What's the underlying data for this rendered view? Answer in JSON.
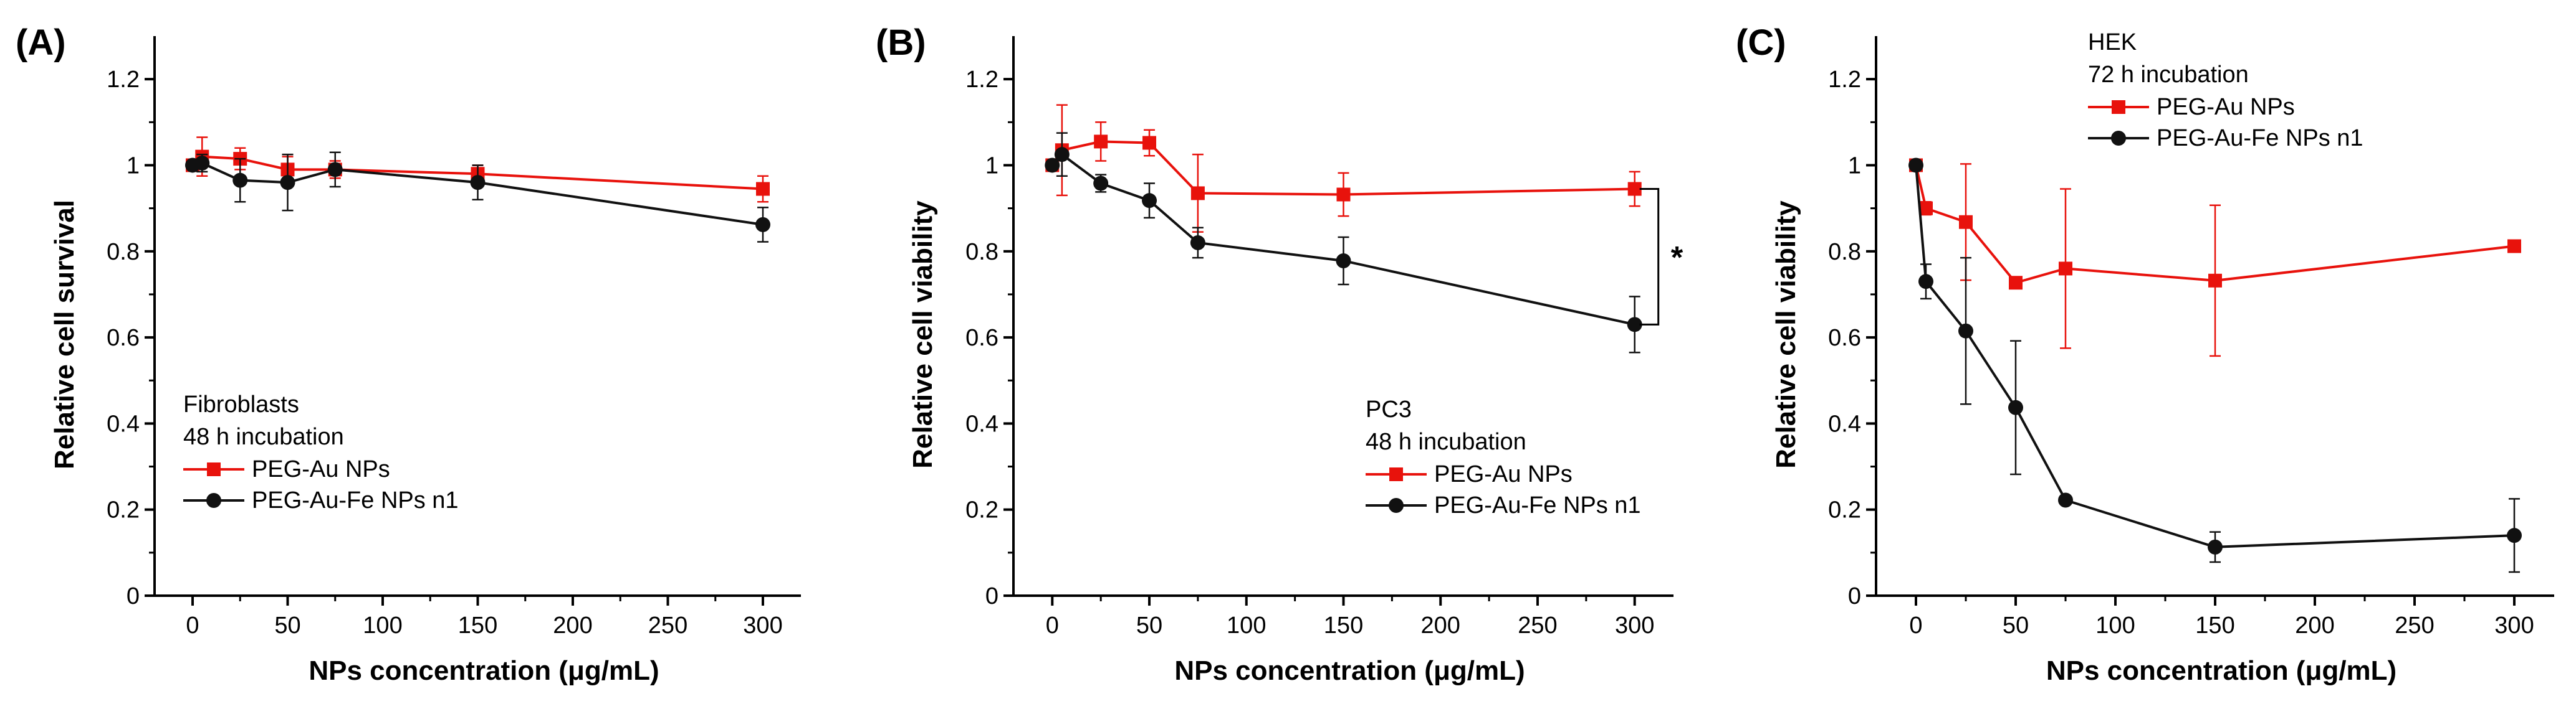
{
  "colors": {
    "red": "#e8120c",
    "black": "#111111",
    "axis": "#000000"
  },
  "chart_data": [
    {
      "panel_label": "(A)",
      "type": "line",
      "xlabel": "NPs concentration (μg/mL)",
      "ylabel": "Relative cell survival",
      "xlim": [
        -20,
        320
      ],
      "ylim": [
        0,
        1.3
      ],
      "xticks": [
        0,
        50,
        100,
        150,
        200,
        250,
        300
      ],
      "yticks": [
        0,
        0.2,
        0.4,
        0.6,
        0.8,
        1,
        1.2
      ],
      "ytick_labels": [
        "0",
        "0.2",
        "0.4",
        "0.6",
        "0.8",
        "1",
        "1.2"
      ],
      "legend_title": [
        "Fibroblasts",
        "48 h incubation"
      ],
      "legend_position": "bottom-left",
      "series": [
        {
          "name": "PEG-Au NPs",
          "color": "red",
          "marker": "square",
          "x": [
            0,
            5,
            25,
            50,
            75,
            150,
            300
          ],
          "y": [
            1.0,
            1.02,
            1.015,
            0.99,
            0.99,
            0.98,
            0.945
          ],
          "err": [
            0.0,
            0.045,
            0.025,
            0.03,
            0.02,
            0.02,
            0.03
          ]
        },
        {
          "name": "PEG-Au-Fe NPs n1",
          "color": "black",
          "marker": "circle",
          "x": [
            0,
            5,
            25,
            50,
            75,
            150,
            300
          ],
          "y": [
            1.0,
            1.005,
            0.965,
            0.96,
            0.99,
            0.96,
            0.862
          ],
          "err": [
            0.0,
            0.02,
            0.05,
            0.065,
            0.04,
            0.04,
            0.04
          ]
        }
      ]
    },
    {
      "panel_label": "(B)",
      "type": "line",
      "xlabel": "NPs concentration (μg/mL)",
      "ylabel": "Relative cell viability",
      "xlim": [
        -20,
        320
      ],
      "ylim": [
        0,
        1.3
      ],
      "xticks": [
        0,
        50,
        100,
        150,
        200,
        250,
        300
      ],
      "yticks": [
        0,
        0.2,
        0.4,
        0.6,
        0.8,
        1,
        1.2
      ],
      "ytick_labels": [
        "0",
        "0.2",
        "0.4",
        "0.6",
        "0.8",
        "1",
        "1.2"
      ],
      "legend_title": [
        "PC3",
        "48 h incubation"
      ],
      "legend_position": "bottom-right",
      "significance": {
        "x": 300,
        "y_top": 0.945,
        "y_bottom": 0.63,
        "label": "*"
      },
      "series": [
        {
          "name": "PEG-Au NPs",
          "color": "red",
          "marker": "square",
          "x": [
            0,
            5,
            25,
            50,
            75,
            150,
            300
          ],
          "y": [
            1.0,
            1.035,
            1.055,
            1.052,
            0.935,
            0.932,
            0.945
          ],
          "err": [
            0.0,
            0.105,
            0.045,
            0.03,
            0.09,
            0.05,
            0.04
          ]
        },
        {
          "name": "PEG-Au-Fe NPs n1",
          "color": "black",
          "marker": "circle",
          "x": [
            0,
            5,
            25,
            50,
            75,
            150,
            300
          ],
          "y": [
            1.0,
            1.025,
            0.958,
            0.918,
            0.82,
            0.778,
            0.63
          ],
          "err": [
            0.0,
            0.05,
            0.02,
            0.04,
            0.035,
            0.055,
            0.065
          ]
        }
      ]
    },
    {
      "panel_label": "(C)",
      "type": "line",
      "xlabel": "NPs concentration (μg/mL)",
      "ylabel": "Relative cell viability",
      "xlim": [
        -20,
        320
      ],
      "ylim": [
        0,
        1.3
      ],
      "xticks": [
        0,
        50,
        100,
        150,
        200,
        250,
        300
      ],
      "yticks": [
        0,
        0.2,
        0.4,
        0.6,
        0.8,
        1,
        1.2
      ],
      "ytick_labels": [
        "0",
        "0.2",
        "0.4",
        "0.6",
        "0.8",
        "1",
        "1.2"
      ],
      "legend_title": [
        "HEK",
        "72 h incubation"
      ],
      "legend_position": "top-left",
      "series": [
        {
          "name": "PEG-Au NPs",
          "color": "red",
          "marker": "square",
          "x": [
            0,
            5,
            25,
            50,
            75,
            150,
            300
          ],
          "y": [
            1.0,
            0.9,
            0.868,
            0.727,
            0.76,
            0.732,
            0.812
          ],
          "err": [
            0.0,
            0.015,
            0.135,
            0.0,
            0.185,
            0.175,
            0.0
          ]
        },
        {
          "name": "PEG-Au-Fe NPs n1",
          "color": "black",
          "marker": "circle",
          "x": [
            0,
            5,
            25,
            50,
            75,
            150,
            300
          ],
          "y": [
            1.0,
            0.73,
            0.615,
            0.437,
            0.222,
            0.113,
            0.14
          ],
          "err": [
            0.0,
            0.04,
            0.17,
            0.155,
            0.0,
            0.035,
            0.085
          ]
        }
      ]
    }
  ]
}
